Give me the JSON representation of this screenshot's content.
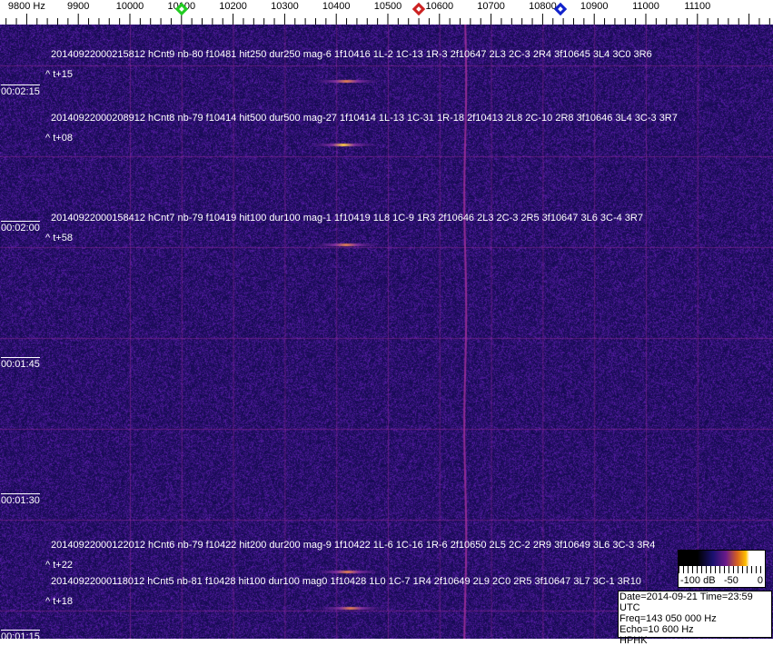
{
  "chart_data": {
    "type": "heatmap",
    "x_axis": {
      "unit": "Hz",
      "ticks": [
        "9800 Hz",
        "9900",
        "10000",
        "10100",
        "10200",
        "10300",
        "10400",
        "10500",
        "10600",
        "10700",
        "10800",
        "10900",
        "11000",
        "11100"
      ],
      "range": [
        9750,
        11250
      ]
    },
    "y_axis": {
      "ticks": [
        "00:02:15",
        "00:02:00",
        "00:01:45",
        "00:01:30",
        "00:01:15"
      ]
    },
    "markers": [
      {
        "freq": 10100,
        "color": "#22cc22"
      },
      {
        "freq": 10560,
        "color": "#cc2222"
      },
      {
        "freq": 10835,
        "color": "#1122cc"
      }
    ],
    "carrier_freq": 10650,
    "annotations": [
      {
        "line": "20140922000215812 hCnt9 nb-80 f10481 hit250 dur250 mag-6 1f10416 1L-2 1C-13 1R-3 2f10647 2L3 2C-3 2R4 3f10645 3L4 3C0 3R6",
        "offset": "^ t+15",
        "freq": 10420,
        "time": "00:02:16"
      },
      {
        "line": "20140922000208912 hCnt8 nb-79 f10414 hit500 dur500 mag-27 1f10414 1L-13 1C-31 1R-18 2f10413 2L8 2C-10 2R8 3f10646 3L4 3C-3 3R7",
        "offset": "^ t+08",
        "freq": 10414,
        "time": "00:02:09"
      },
      {
        "line": "20140922000158412 hCnt7 nb-79 f10419 hit100 dur100 mag-1 1f10419 1L8 1C-9 1R3 2f10646 2L3 2C-3 2R5 3f10647 3L6 3C-4 3R7",
        "offset": "^ t+58",
        "freq": 10419,
        "time": "00:01:58"
      },
      {
        "line": "20140922000122012 hCnt6 nb-79 f10422 hit200 dur200 mag-9 1f10422 1L-6 1C-16 1R-6 2f10650 2L5 2C-2 2R9 3f10649 3L6 3C-3 3R4",
        "offset": "^ t+22",
        "freq": 10422,
        "time": "00:01:22"
      },
      {
        "line": "20140922000118012 hCnt5 nb-81 f10428 hit100 dur100 mag0 1f10428 1L0 1C-7 1R4 2f10649 2L9 2C0 2R5 3f10647 3L7 3C-1 3R10",
        "offset": "^ t+18",
        "freq": 10428,
        "time": "00:01:18"
      }
    ],
    "colorbar": {
      "labels": [
        "-100 dB",
        "-50",
        "0"
      ],
      "range": [
        -100,
        0
      ]
    },
    "background_color": "#20157a"
  },
  "info": {
    "date": "Date=2014-09-21 Time=23:59 UTC",
    "freq": "Freq=143 050 000 Hz",
    "echo": "Echo=10 600 Hz",
    "station": "HPHK"
  }
}
